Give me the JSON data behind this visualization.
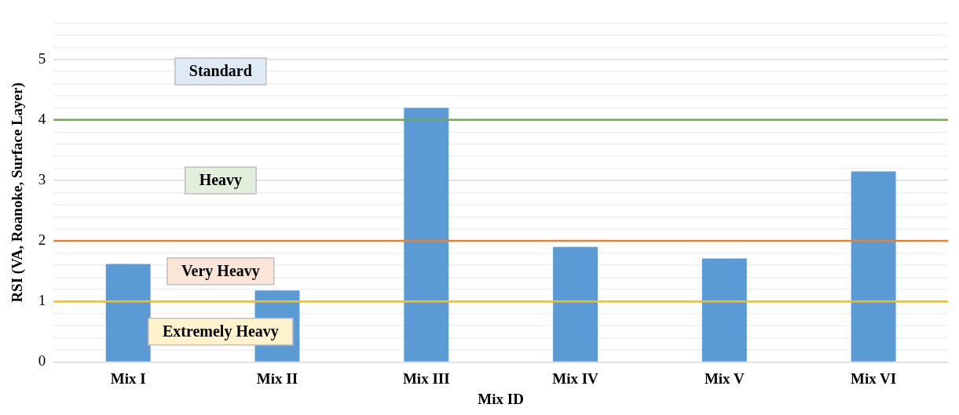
{
  "chart_data": {
    "type": "bar",
    "xlabel": "Mix ID",
    "ylabel": "RSI (VA, Roanoke, Surface Layer)",
    "categories": [
      "Mix I",
      "Mix II",
      "Mix III",
      "Mix IV",
      "Mix V",
      "Mix VI"
    ],
    "values": [
      1.62,
      1.18,
      4.2,
      1.9,
      1.71,
      3.15
    ],
    "color": "#5b9bd5",
    "ylim": [
      0,
      5.6
    ],
    "yticks": [
      0,
      {
        "value": 0.2,
        "label": null
      },
      {
        "value": 0.4,
        "label": null
      },
      {
        "value": 0.6,
        "label": null
      },
      {
        "value": 0.8,
        "label": null
      },
      1,
      {
        "value": 1.2,
        "label": null
      },
      {
        "value": 1.4,
        "label": null
      },
      {
        "value": 1.6,
        "label": null
      },
      {
        "value": 1.8,
        "label": null
      },
      2,
      {
        "value": 2.2,
        "label": null
      },
      {
        "value": 2.4,
        "label": null
      },
      {
        "value": 2.6,
        "label": null
      },
      {
        "value": 2.8,
        "label": null
      },
      3,
      {
        "value": 3.2,
        "label": null
      },
      {
        "value": 3.4,
        "label": null
      },
      {
        "value": 3.6,
        "label": null
      },
      {
        "value": 3.8,
        "label": null
      },
      4,
      {
        "value": 4.2,
        "label": null
      },
      {
        "value": 4.4,
        "label": null
      },
      {
        "value": 4.6,
        "label": null
      },
      {
        "value": 4.8,
        "label": null
      },
      5,
      {
        "value": 5.2,
        "label": null
      },
      {
        "value": 5.4,
        "label": null
      },
      {
        "value": 5.6,
        "label": null
      }
    ],
    "grid": "y",
    "legend": false,
    "ref_lines": [
      {
        "axis": "y",
        "value": 4,
        "color": "#70ad47"
      },
      {
        "axis": "y",
        "value": 2,
        "color": "#ed7d31"
      },
      {
        "axis": "y",
        "value": 1,
        "color": "#ffc000"
      }
    ],
    "annotations": [
      "Standard",
      "Heavy",
      "Very Heavy",
      "Extremely Heavy"
    ]
  }
}
